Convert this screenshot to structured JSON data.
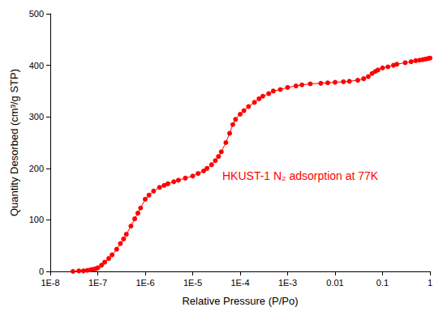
{
  "chart_data": {
    "type": "line",
    "x_label": "Relative Pressure (P/Po)",
    "y_label": "Quantity Desorbed (cm³/g STP)",
    "annotation": "HKUST-1 N₂ adsorption at 77K",
    "color": "#ff0000",
    "marker": "circle",
    "log": "x",
    "grid": false,
    "x": [
      3e-08,
      4e-08,
      5e-08,
      6e-08,
      7e-08,
      8e-08,
      9e-08,
      1e-07,
      1.2e-07,
      1.4e-07,
      1.7e-07,
      2e-07,
      2.5e-07,
      3e-07,
      3.5e-07,
      4e-07,
      5e-07,
      6e-07,
      7e-07,
      8e-07,
      1e-06,
      1.2e-06,
      1.5e-06,
      2e-06,
      2.5e-06,
      3e-06,
      4e-06,
      5e-06,
      7e-06,
      1e-05,
      1.3e-05,
      1.7e-05,
      2e-05,
      2.5e-05,
      3e-05,
      3.5e-05,
      4e-05,
      5e-05,
      6e-05,
      7e-05,
      8e-05,
      0.0001,
      0.00012,
      0.00015,
      0.0002,
      0.00025,
      0.0003,
      0.0004,
      0.0005,
      0.0007,
      0.001,
      0.0015,
      0.002,
      0.003,
      0.005,
      0.007,
      0.01,
      0.015,
      0.02,
      0.03,
      0.04,
      0.05,
      0.06,
      0.07,
      0.08,
      0.1,
      0.13,
      0.17,
      0.2,
      0.3,
      0.4,
      0.5,
      0.6,
      0.7,
      0.8,
      0.9,
      1
    ],
    "values": [
      0,
      1,
      1,
      2,
      3,
      4,
      5,
      7,
      12,
      18,
      25,
      32,
      43,
      54,
      63,
      72,
      88,
      102,
      113,
      123,
      140,
      148,
      156,
      163,
      167,
      170,
      174,
      177,
      181,
      185,
      190,
      195,
      200,
      207,
      215,
      223,
      232,
      250,
      268,
      285,
      295,
      305,
      312,
      320,
      328,
      335,
      340,
      345,
      350,
      353,
      357,
      360,
      362,
      364,
      365,
      366,
      367,
      368,
      369,
      371,
      374,
      378,
      384,
      388,
      391,
      395,
      397,
      400,
      402,
      405,
      407,
      409,
      410,
      411,
      412,
      413,
      414
    ],
    "xlim": [
      1e-08,
      1
    ],
    "xticks": [
      {
        "value": 1e-08,
        "label": "1E-8"
      },
      {
        "value": 1e-07,
        "label": "1E-7"
      },
      {
        "value": 1e-06,
        "label": "1E-6"
      },
      {
        "value": 1e-05,
        "label": "1E-5"
      },
      {
        "value": 0.0001,
        "label": "1E-4"
      },
      {
        "value": 0.001,
        "label": "1E-3"
      },
      0.01,
      0.1,
      1
    ],
    "ylim": [
      0,
      500
    ],
    "yticks": [
      0,
      100,
      200,
      300,
      400,
      500
    ]
  }
}
